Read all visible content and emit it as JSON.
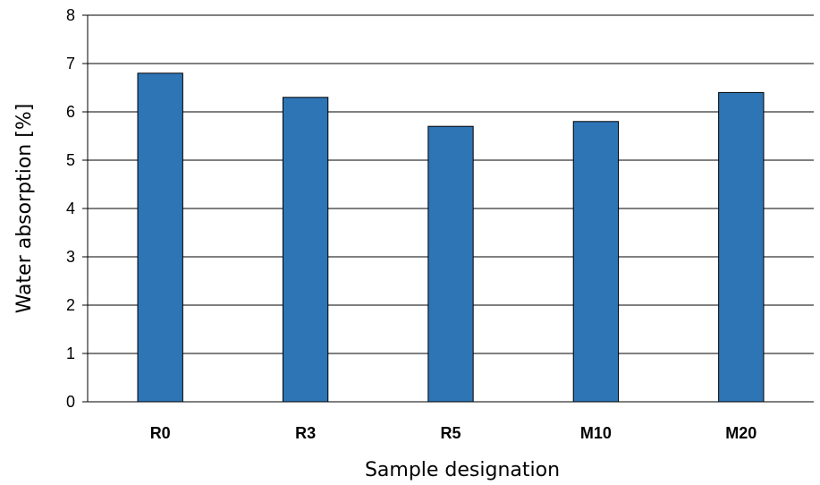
{
  "chart_data": {
    "type": "bar",
    "title": "",
    "xlabel": "Sample designation",
    "ylabel": "Water absorption [%]",
    "categories": [
      "R0",
      "R3",
      "R5",
      "M10",
      "M20"
    ],
    "values": [
      6.8,
      6.3,
      5.7,
      5.8,
      6.4
    ],
    "ylim": [
      0,
      8
    ],
    "yticks": [
      0,
      1,
      2,
      3,
      4,
      5,
      6,
      7,
      8
    ],
    "grid": true,
    "legend": "none",
    "colors": {
      "bar_fill": "#2e75b6",
      "bar_stroke": "#000000",
      "gridline": "#000000",
      "axis": "#000000"
    }
  }
}
